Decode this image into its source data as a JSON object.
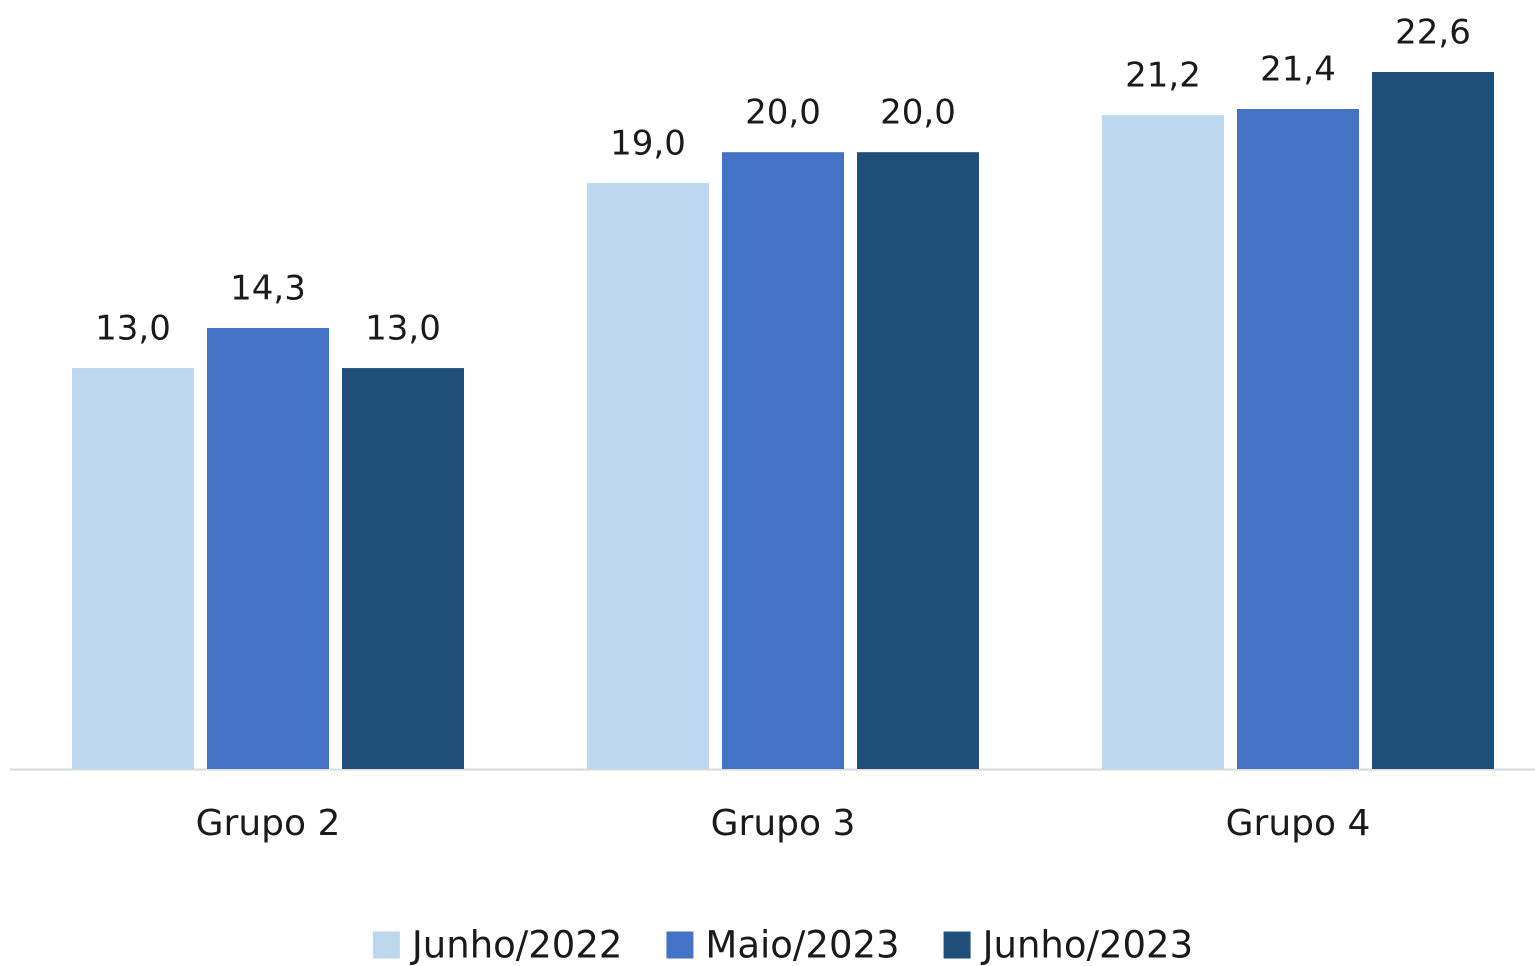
{
  "chart_data": {
    "type": "bar",
    "categories": [
      "Grupo 2",
      "Grupo 3",
      "Grupo 4"
    ],
    "series": [
      {
        "name": "Junho/2022",
        "color": "#bdd7ee",
        "values": [
          13.0,
          19.0,
          21.2
        ],
        "value_labels": [
          "13,0",
          "19,0",
          "21,2"
        ]
      },
      {
        "name": "Maio/2023",
        "color": "#4472c4",
        "values": [
          14.3,
          20.0,
          21.4
        ],
        "value_labels": [
          "14,3",
          "20,0",
          "21,4"
        ]
      },
      {
        "name": "Junho/2023",
        "color": "#1f4e79",
        "values": [
          13.0,
          20.0,
          22.6
        ],
        "value_labels": [
          "13,0",
          "20,0",
          "22,6"
        ]
      }
    ],
    "legend": "bottom"
  }
}
